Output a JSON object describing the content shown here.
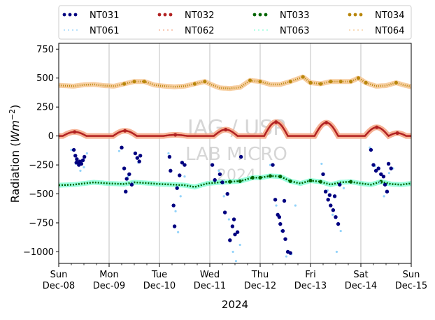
{
  "chart_data": {
    "type": "scatter",
    "title": "",
    "xlabel": "2024",
    "ylabel_main": "Radiation (",
    "ylabel_unit_base": "Wm",
    "ylabel_unit_exp": "−2",
    "ylabel_close": ")",
    "ylim": [
      -1100,
      800
    ],
    "yticks": [
      750,
      500,
      250,
      0,
      -250,
      -500,
      -750,
      -1000
    ],
    "ytick_labels": [
      "750",
      "500",
      "250",
      "0",
      "−250",
      "−500",
      "−750",
      "−1000"
    ],
    "xlim": [
      0,
      7
    ],
    "xticks": [
      {
        "day": "Sun",
        "date": "Dec-08"
      },
      {
        "day": "Mon",
        "date": "Dec-09"
      },
      {
        "day": "Tue",
        "date": "Dec-10"
      },
      {
        "day": "Wed",
        "date": "Dec-11"
      },
      {
        "day": "Thu",
        "date": "Dec-12"
      },
      {
        "day": "Fri",
        "date": "Dec-13"
      },
      {
        "day": "Sat",
        "date": "Dec-14"
      },
      {
        "day": "Sun",
        "date": "Dec-15"
      }
    ],
    "grid": "vertical-major",
    "legend_position": "top, above plot, 4 columns",
    "watermark": [
      "IAG / USP",
      "LAB MICRO",
      "2024"
    ],
    "series": [
      {
        "name": "NT031",
        "color": "#000080",
        "style": "dots"
      },
      {
        "name": "NT032",
        "color": "#b22222",
        "style": "dots"
      },
      {
        "name": "NT033",
        "color": "#006400",
        "style": "dots"
      },
      {
        "name": "NT034",
        "color": "#b8860b",
        "style": "dots"
      },
      {
        "name": "NT061",
        "color": "#87cefa",
        "style": "dotted"
      },
      {
        "name": "NT062",
        "color": "#f4a582",
        "style": "dotted"
      },
      {
        "name": "NT063",
        "color": "#7fffd4",
        "style": "dotted"
      },
      {
        "name": "NT064",
        "color": "#f5c28a",
        "style": "dotted"
      }
    ],
    "upper_longwave_NT034": [
      [
        0.0,
        437
      ],
      [
        0.3,
        430
      ],
      [
        0.5,
        442
      ],
      [
        0.7,
        445
      ],
      [
        0.9,
        435
      ],
      [
        1.1,
        430
      ],
      [
        1.3,
        450
      ],
      [
        1.5,
        470
      ],
      [
        1.7,
        470
      ],
      [
        1.9,
        440
      ],
      [
        2.1,
        430
      ],
      [
        2.3,
        425
      ],
      [
        2.5,
        430
      ],
      [
        2.7,
        450
      ],
      [
        2.9,
        470
      ],
      [
        3.05,
        440
      ],
      [
        3.2,
        415
      ],
      [
        3.4,
        410
      ],
      [
        3.6,
        420
      ],
      [
        3.8,
        480
      ],
      [
        4.0,
        470
      ],
      [
        4.2,
        445
      ],
      [
        4.4,
        445
      ],
      [
        4.6,
        470
      ],
      [
        4.85,
        510
      ],
      [
        5.0,
        460
      ],
      [
        5.2,
        450
      ],
      [
        5.4,
        470
      ],
      [
        5.6,
        470
      ],
      [
        5.8,
        470
      ],
      [
        5.95,
        500
      ],
      [
        6.1,
        460
      ],
      [
        6.3,
        430
      ],
      [
        6.5,
        435
      ],
      [
        6.7,
        460
      ],
      [
        6.85,
        440
      ],
      [
        7.0,
        425
      ]
    ],
    "lower_longwave_NT033": [
      [
        0.0,
        -425
      ],
      [
        0.3,
        -420
      ],
      [
        0.5,
        -410
      ],
      [
        0.7,
        -400
      ],
      [
        1.0,
        -410
      ],
      [
        1.3,
        -415
      ],
      [
        1.5,
        -400
      ],
      [
        1.7,
        -405
      ],
      [
        2.0,
        -415
      ],
      [
        2.3,
        -420
      ],
      [
        2.5,
        -425
      ],
      [
        2.7,
        -440
      ],
      [
        2.95,
        -410
      ],
      [
        3.2,
        -400
      ],
      [
        3.4,
        -395
      ],
      [
        3.6,
        -390
      ],
      [
        3.85,
        -360
      ],
      [
        4.0,
        -360
      ],
      [
        4.2,
        -345
      ],
      [
        4.4,
        -350
      ],
      [
        4.6,
        -390
      ],
      [
        4.8,
        -410
      ],
      [
        5.0,
        -385
      ],
      [
        5.2,
        -395
      ],
      [
        5.4,
        -420
      ],
      [
        5.6,
        -400
      ],
      [
        5.8,
        -395
      ],
      [
        6.0,
        -410
      ],
      [
        6.2,
        -420
      ],
      [
        6.4,
        -395
      ],
      [
        6.6,
        -415
      ],
      [
        6.8,
        -420
      ],
      [
        7.0,
        -410
      ]
    ],
    "net_shortwave_humps": [
      {
        "start": 0.08,
        "end": 0.55,
        "peak": 35
      },
      {
        "start": 1.08,
        "end": 1.55,
        "peak": 45
      },
      {
        "start": 2.08,
        "end": 2.55,
        "peak": 10
      },
      {
        "start": 3.08,
        "end": 3.55,
        "peak": 55
      },
      {
        "start": 4.08,
        "end": 4.55,
        "peak": 120
      },
      {
        "start": 5.08,
        "end": 5.55,
        "peak": 115
      },
      {
        "start": 6.08,
        "end": 6.55,
        "peak": 75
      },
      {
        "start": 6.55,
        "end": 6.9,
        "peak": 25
      }
    ],
    "negative_scatter_NT031": [
      [
        0.3,
        -120
      ],
      [
        0.33,
        -170
      ],
      [
        0.36,
        -200
      ],
      [
        0.39,
        -230
      ],
      [
        0.42,
        -220
      ],
      [
        0.45,
        -240
      ],
      [
        0.48,
        -210
      ],
      [
        0.51,
        -180
      ],
      [
        0.4,
        -250
      ],
      [
        0.35,
        -230
      ],
      [
        1.25,
        -100
      ],
      [
        1.3,
        -280
      ],
      [
        1.35,
        -370
      ],
      [
        1.4,
        -330
      ],
      [
        1.45,
        -420
      ],
      [
        1.33,
        -480
      ],
      [
        1.52,
        -150
      ],
      [
        1.56,
        -190
      ],
      [
        1.6,
        -220
      ],
      [
        1.62,
        -170
      ],
      [
        2.2,
        -180
      ],
      [
        2.22,
        -300
      ],
      [
        2.28,
        -600
      ],
      [
        2.3,
        -780
      ],
      [
        2.35,
        -450
      ],
      [
        2.45,
        -230
      ],
      [
        2.5,
        -250
      ],
      [
        2.4,
        -340
      ],
      [
        3.05,
        -250
      ],
      [
        3.1,
        -380
      ],
      [
        3.2,
        -330
      ],
      [
        3.25,
        -400
      ],
      [
        3.3,
        -660
      ],
      [
        3.35,
        -500
      ],
      [
        3.45,
        -780
      ],
      [
        3.5,
        -850
      ],
      [
        3.55,
        -830
      ],
      [
        3.4,
        -900
      ],
      [
        3.48,
        -720
      ],
      [
        3.62,
        -180
      ],
      [
        4.25,
        -250
      ],
      [
        4.3,
        -550
      ],
      [
        4.35,
        -680
      ],
      [
        4.4,
        -760
      ],
      [
        4.45,
        -820
      ],
      [
        4.5,
        -890
      ],
      [
        4.55,
        -1000
      ],
      [
        4.6,
        -1010
      ],
      [
        4.38,
        -700
      ],
      [
        4.48,
        -560
      ],
      [
        5.25,
        -330
      ],
      [
        5.3,
        -480
      ],
      [
        5.35,
        -550
      ],
      [
        5.4,
        -600
      ],
      [
        5.45,
        -640
      ],
      [
        5.5,
        -700
      ],
      [
        5.55,
        -760
      ],
      [
        5.38,
        -510
      ],
      [
        5.48,
        -520
      ],
      [
        5.58,
        -420
      ],
      [
        6.2,
        -120
      ],
      [
        6.25,
        -250
      ],
      [
        6.3,
        -300
      ],
      [
        6.35,
        -280
      ],
      [
        6.4,
        -330
      ],
      [
        6.45,
        -350
      ],
      [
        6.48,
        -420
      ],
      [
        6.52,
        -480
      ],
      [
        6.55,
        -240
      ],
      [
        6.6,
        -280
      ]
    ],
    "negative_scatter_NT061": [
      [
        0.25,
        -120
      ],
      [
        0.34,
        -240
      ],
      [
        0.43,
        -300
      ],
      [
        0.5,
        -270
      ],
      [
        0.56,
        -150
      ],
      [
        1.2,
        -130
      ],
      [
        1.38,
        -350
      ],
      [
        1.47,
        -400
      ],
      [
        1.58,
        -230
      ],
      [
        2.18,
        -150
      ],
      [
        2.32,
        -650
      ],
      [
        2.37,
        -830
      ],
      [
        2.42,
        -520
      ],
      [
        2.5,
        -350
      ],
      [
        3.18,
        -300
      ],
      [
        3.28,
        -520
      ],
      [
        3.38,
        -720
      ],
      [
        3.46,
        -1000
      ],
      [
        3.52,
        -1080
      ],
      [
        3.6,
        -940
      ],
      [
        4.2,
        -250
      ],
      [
        4.32,
        -600
      ],
      [
        4.42,
        -820
      ],
      [
        4.52,
        -1040
      ],
      [
        4.62,
        -1020
      ],
      [
        4.7,
        -600
      ],
      [
        5.22,
        -240
      ],
      [
        5.34,
        -470
      ],
      [
        5.44,
        -680
      ],
      [
        5.52,
        -1000
      ],
      [
        5.6,
        -820
      ],
      [
        5.66,
        -450
      ],
      [
        6.18,
        -100
      ],
      [
        6.28,
        -260
      ],
      [
        6.38,
        -400
      ],
      [
        6.46,
        -520
      ],
      [
        6.56,
        -320
      ],
      [
        6.64,
        -280
      ]
    ]
  }
}
